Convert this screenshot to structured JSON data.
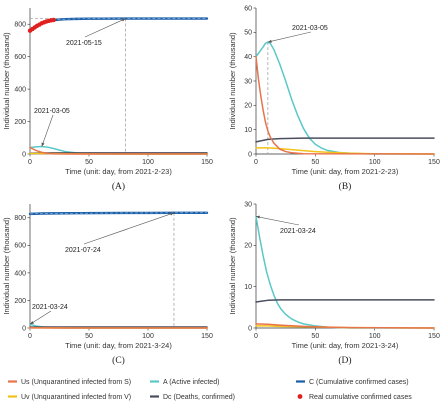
{
  "colors": {
    "Us": "#E8744A",
    "Uv": "#F2C21B",
    "A": "#5BC8C8",
    "Dc": "#4A4E5E",
    "C": "#1A5EA8",
    "real": "#E0201E"
  },
  "legend": [
    {
      "key": "Us",
      "label": "Us (Unquarantined infected from S)",
      "style": "line"
    },
    {
      "key": "A",
      "label": "A (Active infected)",
      "style": "line"
    },
    {
      "key": "C",
      "label": "C (Cumulative confirmed cases)",
      "style": "line"
    },
    {
      "key": "Uv",
      "label": "Uv (Unquarantined infected from V)",
      "style": "line"
    },
    {
      "key": "Dc",
      "label": "Dc (Deaths, confirmed)",
      "style": "line"
    },
    {
      "key": "real",
      "label": "Real cumulative confirmed cases",
      "style": "dot"
    }
  ],
  "chart_data": [
    {
      "panel": "(A)",
      "type": "line",
      "xlabel": "Time (unit: day, from 2021-2-23)",
      "ylabel": "Individual number (thousand)",
      "xlim": [
        0,
        150
      ],
      "ylim": [
        0,
        900
      ],
      "xticks": [
        0,
        50,
        100,
        150
      ],
      "yticks": [
        0,
        200,
        400,
        600,
        800
      ],
      "series": [
        {
          "key": "C",
          "x": [
            0,
            5,
            10,
            15,
            20,
            25,
            30,
            40,
            50,
            60,
            80,
            100,
            120,
            150
          ],
          "y": [
            760,
            785,
            805,
            818,
            825,
            829,
            831,
            833,
            834,
            834,
            835,
            835,
            835,
            835
          ]
        },
        {
          "key": "A",
          "x": [
            0,
            5,
            10,
            15,
            20,
            25,
            30,
            40,
            50,
            60,
            80,
            100,
            150
          ],
          "y": [
            40,
            44,
            46,
            42,
            34,
            24,
            15,
            6,
            2,
            1,
            0,
            0,
            0
          ]
        },
        {
          "key": "Us",
          "x": [
            0,
            5,
            10,
            15,
            20,
            30,
            150
          ],
          "y": [
            40,
            22,
            10,
            4,
            1,
            0,
            0
          ]
        },
        {
          "key": "Uv",
          "x": [
            0,
            10,
            20,
            40,
            80,
            150
          ],
          "y": [
            3,
            3,
            2,
            1,
            0,
            0
          ]
        },
        {
          "key": "Dc",
          "x": [
            0,
            10,
            20,
            30,
            150
          ],
          "y": [
            5,
            6,
            7,
            7,
            7
          ]
        },
        {
          "key": "real",
          "x": [
            0,
            2,
            4,
            6,
            8,
            10,
            12,
            14,
            16,
            18,
            20
          ],
          "y": [
            760,
            770,
            780,
            790,
            798,
            806,
            812,
            817,
            821,
            824,
            826
          ]
        }
      ],
      "annotations": [
        {
          "text": "2021-05-15",
          "x": 81,
          "y": 835
        },
        {
          "text": "2021-03-05",
          "x": 10,
          "y": 46
        }
      ]
    },
    {
      "panel": "(B)",
      "type": "line",
      "xlabel": "Time (unit: day, from 2021-2-23)",
      "ylabel": "Individual number (thousand)",
      "xlim": [
        0,
        150
      ],
      "ylim": [
        0,
        60
      ],
      "xticks": [
        0,
        50,
        100,
        150
      ],
      "yticks": [
        0,
        10,
        20,
        30,
        40,
        50,
        60
      ],
      "series": [
        {
          "key": "A",
          "x": [
            0,
            3,
            6,
            8,
            10,
            12,
            15,
            20,
            25,
            30,
            35,
            40,
            45,
            50,
            55,
            60,
            70,
            80,
            90,
            100,
            150
          ],
          "y": [
            40,
            42,
            44,
            45.5,
            46,
            45.5,
            43,
            37,
            30,
            22.5,
            16,
            10.5,
            6.5,
            4,
            2.5,
            1.5,
            0.6,
            0.3,
            0.1,
            0,
            0
          ]
        },
        {
          "key": "Us",
          "x": [
            0,
            2,
            4,
            6,
            8,
            10,
            12,
            15,
            20,
            25,
            30,
            40,
            150
          ],
          "y": [
            40,
            31,
            24,
            18,
            13,
            9.5,
            7,
            4.5,
            2,
            1,
            0.5,
            0.1,
            0
          ]
        },
        {
          "key": "Uv",
          "x": [
            0,
            10,
            20,
            30,
            40,
            50,
            60,
            80,
            100,
            150
          ],
          "y": [
            2.5,
            2.5,
            2.2,
            1.8,
            1.4,
            1,
            0.7,
            0.3,
            0.1,
            0
          ]
        },
        {
          "key": "Dc",
          "x": [
            0,
            5,
            10,
            20,
            30,
            40,
            60,
            150
          ],
          "y": [
            5,
            5.5,
            6,
            6.3,
            6.4,
            6.5,
            6.5,
            6.5
          ]
        }
      ],
      "annotations": [
        {
          "text": "2021-03-05",
          "x": 10,
          "y": 46
        }
      ]
    },
    {
      "panel": "(C)",
      "type": "line",
      "xlabel": "Time (unit: day, from 2021-3-24)",
      "ylabel": "Individual number (thousand)",
      "xlim": [
        0,
        150
      ],
      "ylim": [
        0,
        900
      ],
      "xticks": [
        0,
        50,
        100,
        150
      ],
      "yticks": [
        0,
        200,
        400,
        600,
        800
      ],
      "series": [
        {
          "key": "C",
          "x": [
            0,
            10,
            20,
            40,
            60,
            80,
            100,
            122,
            150
          ],
          "y": [
            828,
            831,
            832,
            833,
            834,
            835,
            835,
            836,
            836
          ]
        },
        {
          "key": "A",
          "x": [
            0,
            5,
            10,
            15,
            20,
            30,
            150
          ],
          "y": [
            27,
            15,
            8,
            4,
            2,
            0,
            0
          ]
        },
        {
          "key": "Us",
          "x": [
            0,
            10,
            20,
            150
          ],
          "y": [
            1,
            0.5,
            0,
            0
          ]
        },
        {
          "key": "Uv",
          "x": [
            0,
            20,
            40,
            150
          ],
          "y": [
            1,
            0.5,
            0,
            0
          ]
        },
        {
          "key": "Dc",
          "x": [
            0,
            10,
            20,
            150
          ],
          "y": [
            6,
            7,
            7,
            7
          ]
        }
      ],
      "annotations": [
        {
          "text": "2021-07-24",
          "x": 122,
          "y": 836
        },
        {
          "text": "2021-03-24",
          "x": 0,
          "y": 27
        }
      ]
    },
    {
      "panel": "(D)",
      "type": "line",
      "xlabel": "Time (unit: day, from 2021-3-24)",
      "ylabel": "Individual number (thousand)",
      "xlim": [
        0,
        150
      ],
      "ylim": [
        0,
        30
      ],
      "xticks": [
        0,
        50,
        100,
        150
      ],
      "yticks": [
        0,
        10,
        20,
        30
      ],
      "series": [
        {
          "key": "A",
          "x": [
            0,
            3,
            6,
            9,
            12,
            15,
            18,
            21,
            25,
            30,
            35,
            40,
            50,
            60,
            70,
            80,
            100,
            150
          ],
          "y": [
            27,
            22,
            17.5,
            13.5,
            10.5,
            8,
            6,
            4.6,
            3.3,
            2.2,
            1.5,
            1,
            0.5,
            0.2,
            0.1,
            0,
            0,
            0
          ]
        },
        {
          "key": "Dc",
          "x": [
            0,
            5,
            10,
            20,
            30,
            40,
            60,
            150
          ],
          "y": [
            6.3,
            6.5,
            6.7,
            6.8,
            6.8,
            6.8,
            6.8,
            6.8
          ]
        },
        {
          "key": "Us",
          "x": [
            0,
            10,
            20,
            40,
            60,
            80,
            150
          ],
          "y": [
            1,
            0.9,
            0.7,
            0.4,
            0.2,
            0.1,
            0
          ]
        },
        {
          "key": "Uv",
          "x": [
            0,
            10,
            20,
            40,
            60,
            80,
            150
          ],
          "y": [
            0.5,
            0.5,
            0.4,
            0.3,
            0.2,
            0.1,
            0
          ]
        }
      ],
      "annotations": [
        {
          "text": "2021-03-24",
          "x": 0,
          "y": 27
        }
      ]
    }
  ]
}
